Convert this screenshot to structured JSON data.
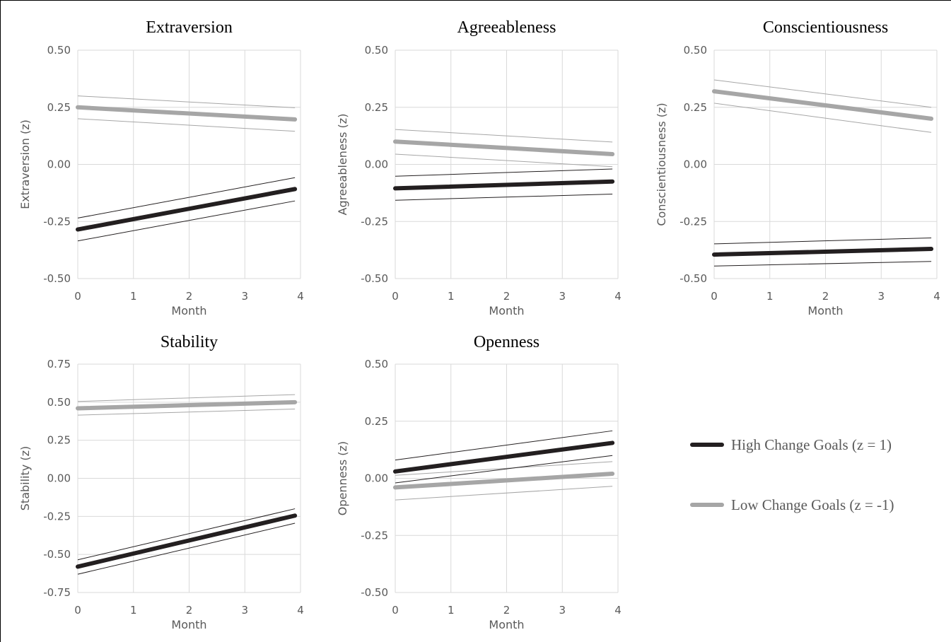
{
  "colors": {
    "high": "#231f20",
    "low": "#a6a6a6",
    "grid": "#d9d9d9",
    "text": "#595959"
  },
  "legend": {
    "items": [
      {
        "label": "High Change Goals (z = 1)",
        "color": "#231f20"
      },
      {
        "label": "Low Change Goals (z = -1)",
        "color": "#a6a6a6"
      }
    ]
  },
  "chart_data": [
    {
      "type": "line",
      "title": "Extraversion",
      "xlabel": "Month",
      "ylabel": "Extraversion (z)",
      "xlim": [
        0,
        4
      ],
      "ylim": [
        -0.5,
        0.5
      ],
      "xticks": [
        "0",
        "1",
        "2",
        "3",
        "4"
      ],
      "yticks": [
        "-0.50",
        "-0.25",
        "0.00",
        "0.25",
        "0.50"
      ],
      "grid": true,
      "x": [
        0,
        3.9
      ],
      "series": [
        {
          "name": "High Change Goals (z = 1)",
          "values": [
            -0.285,
            -0.108
          ],
          "ci_lower": [
            -0.335,
            -0.16
          ],
          "ci_upper": [
            -0.235,
            -0.058
          ]
        },
        {
          "name": "Low Change Goals (z = -1)",
          "values": [
            0.25,
            0.197
          ],
          "ci_lower": [
            0.2,
            0.145
          ],
          "ci_upper": [
            0.3,
            0.248
          ]
        }
      ]
    },
    {
      "type": "line",
      "title": "Agreeableness",
      "xlabel": "Month",
      "ylabel": "Agreeableness (z)",
      "xlim": [
        0,
        4
      ],
      "ylim": [
        -0.5,
        0.5
      ],
      "xticks": [
        "0",
        "1",
        "2",
        "3",
        "4"
      ],
      "yticks": [
        "-0.50",
        "-0.25",
        "0.00",
        "0.25",
        "0.50"
      ],
      "grid": true,
      "x": [
        0,
        3.9
      ],
      "series": [
        {
          "name": "High Change Goals (z = 1)",
          "values": [
            -0.105,
            -0.075
          ],
          "ci_lower": [
            -0.157,
            -0.13
          ],
          "ci_upper": [
            -0.052,
            -0.02
          ]
        },
        {
          "name": "Low Change Goals (z = -1)",
          "values": [
            0.1,
            0.045
          ],
          "ci_lower": [
            0.045,
            -0.01
          ],
          "ci_upper": [
            0.153,
            0.098
          ]
        }
      ]
    },
    {
      "type": "line",
      "title": "Conscientiousness",
      "xlabel": "Month",
      "ylabel": "Conscientiousness (z)",
      "xlim": [
        0,
        4
      ],
      "ylim": [
        -0.5,
        0.5
      ],
      "xticks": [
        "0",
        "1",
        "2",
        "3",
        "4"
      ],
      "yticks": [
        "-0.50",
        "-0.25",
        "0.00",
        "0.25",
        "0.50"
      ],
      "grid": true,
      "x": [
        0,
        3.9
      ],
      "series": [
        {
          "name": "High Change Goals (z = 1)",
          "values": [
            -0.395,
            -0.37
          ],
          "ci_lower": [
            -0.445,
            -0.425
          ],
          "ci_upper": [
            -0.348,
            -0.322
          ]
        },
        {
          "name": "Low Change Goals (z = -1)",
          "values": [
            0.32,
            0.2
          ],
          "ci_lower": [
            0.268,
            0.14
          ],
          "ci_upper": [
            0.37,
            0.25
          ]
        }
      ]
    },
    {
      "type": "line",
      "title": "Stability",
      "xlabel": "Month",
      "ylabel": "Stability (z)",
      "xlim": [
        0,
        4
      ],
      "ylim": [
        -0.75,
        0.75
      ],
      "xticks": [
        "0",
        "1",
        "2",
        "3",
        "4"
      ],
      "yticks": [
        "-0.75",
        "-0.50",
        "-0.25",
        "0.00",
        "0.25",
        "0.50",
        "0.75"
      ],
      "grid": true,
      "x": [
        0,
        3.9
      ],
      "series": [
        {
          "name": "High Change Goals (z = 1)",
          "values": [
            -0.58,
            -0.245
          ],
          "ci_lower": [
            -0.63,
            -0.295
          ],
          "ci_upper": [
            -0.535,
            -0.2
          ]
        },
        {
          "name": "Low Change Goals (z = -1)",
          "values": [
            0.46,
            0.5
          ],
          "ci_lower": [
            0.415,
            0.455
          ],
          "ci_upper": [
            0.505,
            0.55
          ]
        }
      ]
    },
    {
      "type": "line",
      "title": "Openness",
      "xlabel": "Month",
      "ylabel": "Openness (z)",
      "xlim": [
        0,
        4
      ],
      "ylim": [
        -0.5,
        0.5
      ],
      "xticks": [
        "0",
        "1",
        "2",
        "3",
        "4"
      ],
      "yticks": [
        "-0.50",
        "-0.25",
        "0.00",
        "0.25",
        "0.50"
      ],
      "grid": true,
      "x": [
        0,
        3.9
      ],
      "series": [
        {
          "name": "High Change Goals (z = 1)",
          "values": [
            0.03,
            0.155
          ],
          "ci_lower": [
            -0.02,
            0.1
          ],
          "ci_upper": [
            0.08,
            0.208
          ]
        },
        {
          "name": "Low Change Goals (z = -1)",
          "values": [
            -0.04,
            0.02
          ],
          "ci_lower": [
            -0.095,
            -0.035
          ],
          "ci_upper": [
            0.013,
            0.073
          ]
        }
      ]
    }
  ]
}
